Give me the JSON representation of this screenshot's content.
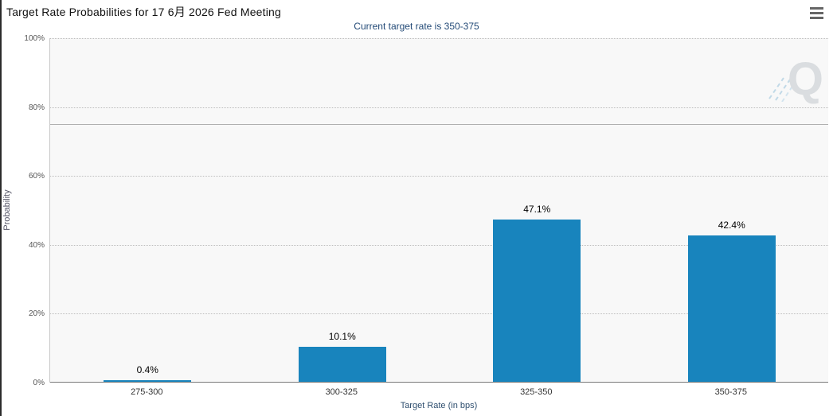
{
  "page": {
    "watermark_letter": "Q"
  },
  "chart_data": {
    "type": "bar",
    "title": "Target Rate Probabilities for 17 6月 2026 Fed Meeting",
    "subtitle": "Current target rate is 350-375",
    "xlabel": "Target Rate (in bps)",
    "ylabel": "Probability",
    "categories": [
      "275-300",
      "300-325",
      "325-350",
      "350-375"
    ],
    "values": [
      0.4,
      10.1,
      47.1,
      42.4
    ],
    "data_labels": [
      "0.4%",
      "10.1%",
      "47.1%",
      "42.4%"
    ],
    "ylim": [
      0,
      100
    ],
    "yticks": [
      0,
      20,
      40,
      60,
      80,
      100
    ],
    "ytick_labels": [
      "0%",
      "20%",
      "40%",
      "60%",
      "80%",
      "100%"
    ],
    "reference_line_y": 75,
    "grid": "horizontal-dotted",
    "legend": "none",
    "colors": {
      "bar": "#1884bd",
      "title": "#111111",
      "subtitle": "#234a77",
      "plot_background": "#f8f8f8",
      "grid": "#bdbdbd",
      "reference_line": "#b0b0b0"
    }
  }
}
